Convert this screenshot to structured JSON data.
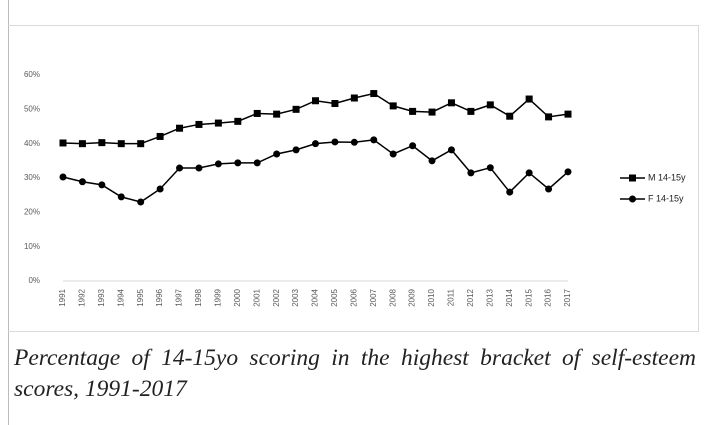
{
  "chart_data": {
    "type": "line",
    "categories": [
      "1991",
      "1992",
      "1993",
      "1994",
      "1995",
      "1996",
      "1997",
      "1998",
      "1999",
      "2000",
      "2001",
      "2002",
      "2003",
      "2004",
      "2005",
      "2006",
      "2007",
      "2008",
      "2009",
      "2010",
      "2011",
      "2012",
      "2013",
      "2014",
      "2015",
      "2016",
      "2017"
    ],
    "series": [
      {
        "name": "M 14-15y",
        "color": "#000000",
        "marker": "square",
        "values": [
          40.2,
          40.0,
          40.3,
          40.0,
          40.0,
          42.1,
          44.5,
          45.6,
          46.0,
          46.5,
          48.8,
          48.6,
          50.0,
          52.5,
          51.7,
          53.3,
          54.6,
          51.0,
          49.4,
          49.2,
          51.9,
          49.4,
          51.3,
          48.0,
          53.0,
          47.8,
          48.6
        ]
      },
      {
        "name": "F 14-15y",
        "color": "#000000",
        "marker": "circle",
        "values": [
          30.3,
          28.9,
          28.0,
          24.5,
          23.0,
          26.8,
          32.9,
          32.9,
          34.1,
          34.4,
          34.4,
          37.0,
          38.2,
          40.0,
          40.5,
          40.4,
          41.1,
          37.0,
          39.4,
          35.0,
          38.2,
          31.5,
          33.0,
          25.9,
          31.5,
          26.8,
          31.8
        ]
      }
    ],
    "ylim": [
      0,
      60
    ],
    "yticks": [
      {
        "value": 0,
        "label": "0%"
      },
      {
        "value": 10,
        "label": "10%"
      },
      {
        "value": 20,
        "label": "20%"
      },
      {
        "value": 30,
        "label": "30%"
      },
      {
        "value": 40,
        "label": "40%"
      },
      {
        "value": 50,
        "label": "50%"
      },
      {
        "value": 60,
        "label": "60%"
      }
    ],
    "grid": false,
    "legend": "right"
  },
  "caption": "Percentage of 14-15yo scoring in the highest bracket of self-esteem scores, 1991-2017"
}
